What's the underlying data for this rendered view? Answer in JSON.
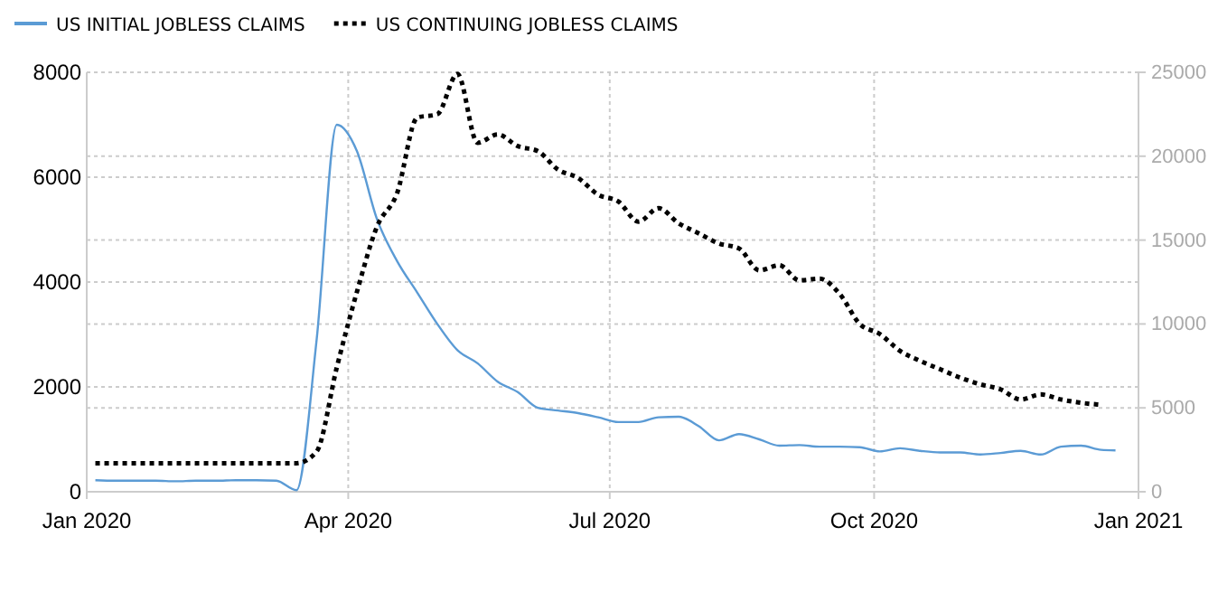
{
  "chart_data": {
    "type": "line",
    "xlim": [
      "2020-01-01",
      "2021-01-01"
    ],
    "xticks": [
      {
        "value": "2020-01-01",
        "label": "Jan 2020"
      },
      {
        "value": "2020-04-01",
        "label": "Apr 2020"
      },
      {
        "value": "2020-07-01",
        "label": "Jul 2020"
      },
      {
        "value": "2020-10-01",
        "label": "Oct 2020"
      },
      {
        "value": "2021-01-01",
        "label": "Jan 2021"
      }
    ],
    "ylim": [
      0,
      8000
    ],
    "yticks": [
      0,
      2000,
      4000,
      6000,
      8000
    ],
    "y2lim": [
      0,
      25000
    ],
    "y2ticks": [
      0,
      5000,
      10000,
      15000,
      20000,
      25000
    ],
    "grid": true,
    "legend": "top left",
    "series": [
      {
        "name": "US INITIAL JOBLESS CLAIMS",
        "color": "#5b9bd5",
        "line_style": "solid",
        "x": [
          "2020-01-04",
          "2020-01-11",
          "2020-01-18",
          "2020-01-25",
          "2020-02-01",
          "2020-02-08",
          "2020-02-15",
          "2020-02-22",
          "2020-02-29",
          "2020-03-07",
          "2020-03-14",
          "2020-03-21",
          "2020-03-28",
          "2020-04-04",
          "2020-04-11",
          "2020-04-18",
          "2020-04-25",
          "2020-05-02",
          "2020-05-09",
          "2020-05-16",
          "2020-05-23",
          "2020-05-30",
          "2020-06-06",
          "2020-06-13",
          "2020-06-20",
          "2020-06-27",
          "2020-07-04",
          "2020-07-11",
          "2020-07-18",
          "2020-07-25",
          "2020-08-01",
          "2020-08-08",
          "2020-08-15",
          "2020-08-22",
          "2020-08-29",
          "2020-09-05",
          "2020-09-12",
          "2020-09-19",
          "2020-09-26",
          "2020-10-03",
          "2020-10-10",
          "2020-10-17",
          "2020-10-24",
          "2020-10-31",
          "2020-11-07",
          "2020-11-14",
          "2020-11-21",
          "2020-11-28",
          "2020-12-05",
          "2020-12-12",
          "2020-12-19",
          "2020-12-24"
        ],
        "values": [
          220,
          210,
          210,
          210,
          200,
          210,
          210,
          220,
          220,
          210,
          30,
          2900,
          7000,
          6500,
          5200,
          4400,
          3800,
          3200,
          2700,
          2450,
          2100,
          1900,
          1600,
          1550,
          1500,
          1420,
          1330,
          1330,
          1420,
          1430,
          1250,
          980,
          1100,
          1000,
          880,
          890,
          860,
          860,
          850,
          770,
          830,
          780,
          750,
          750,
          710,
          740,
          780,
          710,
          860,
          880,
          800,
          790
        ]
      },
      {
        "name": "US CONTINUING JOBLESS CLAIMS",
        "color": "#000000",
        "line_style": "dotted",
        "axis": "y2",
        "x": [
          "2020-01-04",
          "2020-01-11",
          "2020-01-18",
          "2020-01-25",
          "2020-02-01",
          "2020-02-08",
          "2020-02-15",
          "2020-02-22",
          "2020-02-29",
          "2020-03-07",
          "2020-03-14",
          "2020-03-21",
          "2020-03-28",
          "2020-04-04",
          "2020-04-11",
          "2020-04-18",
          "2020-04-25",
          "2020-05-02",
          "2020-05-09",
          "2020-05-16",
          "2020-05-23",
          "2020-05-30",
          "2020-06-06",
          "2020-06-13",
          "2020-06-20",
          "2020-06-27",
          "2020-07-04",
          "2020-07-11",
          "2020-07-18",
          "2020-07-25",
          "2020-08-01",
          "2020-08-08",
          "2020-08-15",
          "2020-08-22",
          "2020-08-29",
          "2020-09-05",
          "2020-09-12",
          "2020-09-19",
          "2020-09-26",
          "2020-10-03",
          "2020-10-10",
          "2020-10-17",
          "2020-10-24",
          "2020-10-31",
          "2020-11-07",
          "2020-11-14",
          "2020-11-21",
          "2020-11-28",
          "2020-12-05",
          "2020-12-12",
          "2020-12-18"
        ],
        "values": [
          1700,
          1700,
          1700,
          1700,
          1700,
          1700,
          1700,
          1700,
          1700,
          1700,
          1700,
          2400,
          7400,
          11900,
          15800,
          17800,
          22300,
          22500,
          24900,
          20800,
          21300,
          20600,
          20300,
          19200,
          18700,
          17700,
          17300,
          16100,
          16900,
          16000,
          15400,
          14800,
          14500,
          13200,
          13500,
          12600,
          12700,
          11800,
          10000,
          9400,
          8400,
          7800,
          7300,
          6800,
          6400,
          6100,
          5500,
          5800,
          5500,
          5300,
          5200
        ]
      }
    ]
  }
}
